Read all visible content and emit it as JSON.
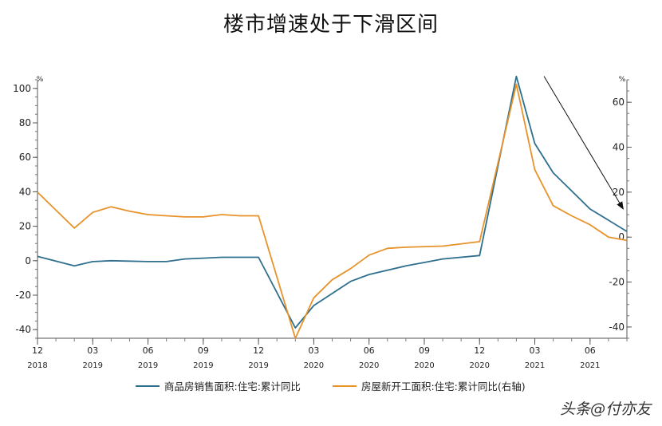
{
  "title": "楼市增速处于下滑区间",
  "watermark": "头条@付亦友",
  "chart_data": {
    "type": "line",
    "left_unit": "%",
    "right_unit": "%",
    "left_ylim": [
      -45,
      105
    ],
    "right_ylim": [
      -45,
      70
    ],
    "left_ticks": [
      -40,
      -20,
      0,
      20,
      40,
      60,
      80,
      100
    ],
    "right_ticks": [
      -40,
      -20,
      0,
      20,
      40,
      60
    ],
    "x_month_index_range": [
      0,
      32
    ],
    "x_ticks": [
      {
        "idx": 0,
        "month": "12",
        "year": "2018"
      },
      {
        "idx": 3,
        "month": "03",
        "year": "2019"
      },
      {
        "idx": 6,
        "month": "06",
        "year": "2019"
      },
      {
        "idx": 9,
        "month": "09",
        "year": "2019"
      },
      {
        "idx": 12,
        "month": "12",
        "year": "2019"
      },
      {
        "idx": 15,
        "month": "03",
        "year": "2020"
      },
      {
        "idx": 18,
        "month": "06",
        "year": "2020"
      },
      {
        "idx": 21,
        "month": "09",
        "year": "2020"
      },
      {
        "idx": 24,
        "month": "12",
        "year": "2020"
      },
      {
        "idx": 27,
        "month": "03",
        "year": "2021"
      },
      {
        "idx": 30,
        "month": "06",
        "year": "2021"
      }
    ],
    "grid": false,
    "legend_placement": "bottom",
    "series": [
      {
        "name": "商品房销售面积:住宅:累计同比",
        "axis": "left",
        "color": "#2e6f8e",
        "points": [
          [
            0,
            2.5
          ],
          [
            2,
            -3
          ],
          [
            3,
            -0.5
          ],
          [
            4,
            0
          ],
          [
            6,
            -0.5
          ],
          [
            7,
            -0.5
          ],
          [
            8,
            1
          ],
          [
            9,
            1.5
          ],
          [
            10,
            2
          ],
          [
            12,
            2
          ],
          [
            14,
            -39
          ],
          [
            15,
            -26
          ],
          [
            17,
            -12
          ],
          [
            18,
            -8
          ],
          [
            20,
            -3
          ],
          [
            21,
            -1
          ],
          [
            22,
            1
          ],
          [
            24,
            3
          ],
          [
            26,
            107
          ],
          [
            27,
            68
          ],
          [
            28,
            51
          ],
          [
            30,
            30
          ],
          [
            32,
            17
          ]
        ]
      },
      {
        "name": "房屋新开工面积:住宅:累计同比(右轴)",
        "axis": "right",
        "color": "#e8922a",
        "points": [
          [
            0,
            20
          ],
          [
            2,
            4
          ],
          [
            3,
            11
          ],
          [
            4,
            13.5
          ],
          [
            5,
            11.5
          ],
          [
            6,
            10
          ],
          [
            7,
            9.5
          ],
          [
            8,
            9
          ],
          [
            9,
            9
          ],
          [
            10,
            10
          ],
          [
            11,
            9.5
          ],
          [
            12,
            9.5
          ],
          [
            14,
            -45
          ],
          [
            15,
            -27
          ],
          [
            16,
            -19
          ],
          [
            17,
            -14
          ],
          [
            18,
            -8
          ],
          [
            19,
            -5
          ],
          [
            20,
            -4.5
          ],
          [
            22,
            -4
          ],
          [
            24,
            -2
          ],
          [
            26,
            68
          ],
          [
            27,
            30
          ],
          [
            28,
            14
          ],
          [
            29,
            9.5
          ],
          [
            30,
            5.5
          ],
          [
            31,
            0
          ],
          [
            32,
            -1.5
          ]
        ]
      }
    ],
    "annotation": {
      "type": "arrow",
      "from": [
        27.5,
        107
      ],
      "to": [
        31.8,
        30
      ],
      "axis": "left"
    }
  }
}
